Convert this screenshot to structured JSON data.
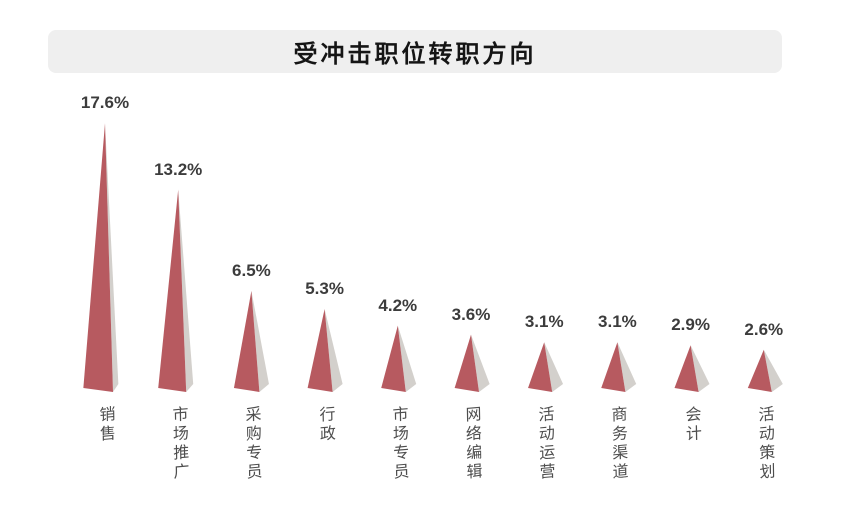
{
  "chart_data": {
    "type": "bar",
    "variant": "3d-pyramid-cones",
    "title": "受冲击职位转职方向",
    "categories": [
      "销售",
      "市场推广",
      "采购专员",
      "行政",
      "市场专员",
      "网络编辑",
      "活动运营",
      "商务渠道",
      "会计",
      "活动策划"
    ],
    "values": [
      17.6,
      13.2,
      6.5,
      5.3,
      4.2,
      3.6,
      3.1,
      3.1,
      2.9,
      2.6
    ],
    "value_suffix": "%",
    "xlabel": "",
    "ylabel": "",
    "ylim": [
      0,
      18
    ],
    "grid": false,
    "legend": false,
    "axes_visible": false,
    "colors": {
      "cone_front": "#b75a60",
      "cone_side": "#d3d0cc",
      "value_label": "#3c3c3c",
      "category_label": "#4e4e4e",
      "title_bg": "#efefef",
      "title_text": "#151515",
      "background": "#ffffff"
    }
  }
}
